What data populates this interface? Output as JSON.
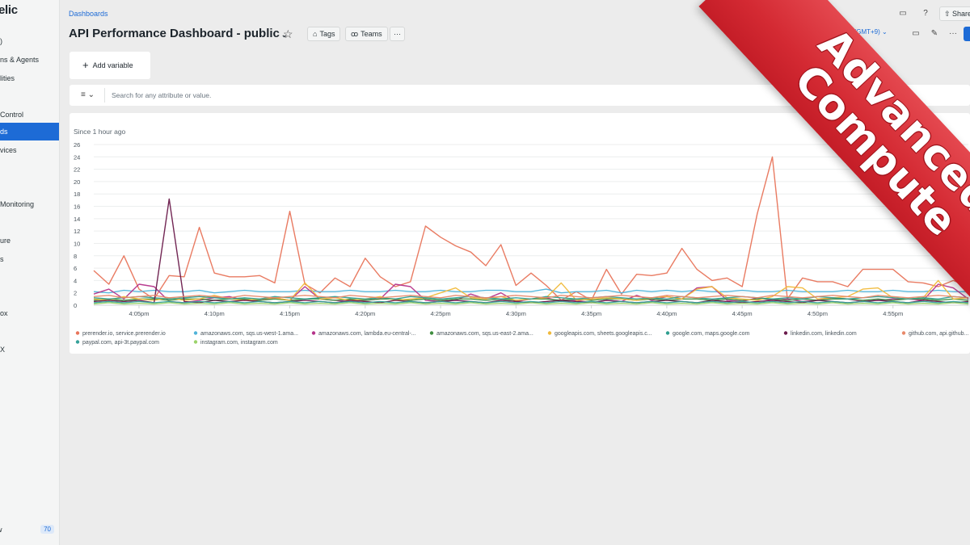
{
  "sidebar": {
    "logo": "elic",
    "items": [
      {
        "label": ")",
        "active": false
      },
      {
        "label": "ns & Agents",
        "active": false
      },
      {
        "label": "lities",
        "active": false
      },
      {
        "label": " Control",
        "active": false
      },
      {
        "label": "ds",
        "active": true
      },
      {
        "label": "vices",
        "active": false
      },
      {
        "label": " Monitoring",
        "active": false
      },
      {
        "label": "ure",
        "active": false
      },
      {
        "label": "s",
        "active": false
      },
      {
        "label": "ox",
        "active": false
      },
      {
        "label": "X",
        "active": false
      }
    ],
    "bottom_label": "w",
    "bottom_badge": "70"
  },
  "header": {
    "breadcrumb": "Dashboards",
    "title": "API Performance Dashboard - public",
    "tags_label": "Tags",
    "teams_label": "Teams",
    "more_label": "···",
    "share_label": "Share",
    "timezone": "Default (GMT+9)"
  },
  "variables": {
    "add_label": "Add variable"
  },
  "search": {
    "placeholder": "Search for any attribute or value."
  },
  "panel": {
    "subtitle": "Since 1 hour ago"
  },
  "ribbon": {
    "text": "Advanced\nCompute"
  },
  "chart_data": {
    "type": "line",
    "title": "",
    "subtitle": "Since 1 hour ago",
    "xlabel": "",
    "ylabel": "",
    "ylim": [
      0,
      26
    ],
    "yticks": [
      0,
      2,
      4,
      6,
      8,
      10,
      12,
      14,
      16,
      18,
      20,
      22,
      24,
      26
    ],
    "xticks": [
      "4:05pm",
      "4:10pm",
      "4:15pm",
      "4:20pm",
      "4:25pm",
      "4:30pm",
      "4:35pm",
      "4:40pm",
      "4:45pm",
      "4:50pm",
      "4:55pm"
    ],
    "x_start_minute": 2,
    "x_step_minutes": 1,
    "series": [
      {
        "name": "prerender.io, service.prerender.io",
        "color": "#e8745a",
        "values": [
          5.6,
          3.4,
          8.0,
          2.6,
          1.0,
          4.8,
          4.6,
          12.6,
          5.2,
          4.6,
          4.6,
          4.8,
          3.6,
          15.2,
          3.4,
          2.0,
          4.4,
          3.0,
          7.6,
          4.6,
          3.0,
          3.8,
          12.8,
          11.0,
          9.6,
          8.6,
          6.4,
          9.8,
          3.2,
          5.2,
          3.2,
          0.8,
          2.2,
          0.8,
          5.8,
          1.8,
          5.0,
          4.8,
          5.2,
          9.2,
          5.8,
          4.0,
          4.4,
          3.0,
          14.8,
          24.0,
          1.0,
          4.4,
          3.8,
          3.8,
          3.0,
          5.8,
          5.8,
          5.8,
          3.8,
          3.6,
          3.0,
          4.0,
          3.0
        ]
      },
      {
        "name": "amazonaws.com, sqs.us-west-1.ama...",
        "color": "#4fb3d9",
        "values": [
          2.2,
          2.0,
          2.4,
          2.2,
          2.4,
          2.2,
          2.2,
          2.4,
          2.0,
          2.2,
          2.4,
          2.2,
          2.2,
          2.2,
          2.4,
          2.2,
          2.2,
          2.4,
          2.2,
          2.2,
          2.4,
          2.2,
          2.2,
          2.4,
          2.2,
          2.2,
          2.4,
          2.4,
          2.2,
          2.2,
          2.6,
          2.0,
          2.2,
          2.2,
          2.4,
          2.0,
          2.4,
          2.2,
          2.4,
          2.2,
          2.4,
          2.2,
          2.2,
          2.4,
          2.2,
          2.2,
          2.4,
          2.2,
          2.2,
          2.2,
          2.4,
          2.2,
          2.2,
          2.4,
          2.2,
          2.2,
          2.4,
          2.2,
          2.2
        ]
      },
      {
        "name": "amazonaws.com, lambda.eu-central-...",
        "color": "#b5338a",
        "values": [
          1.8,
          2.6,
          1.0,
          3.4,
          3.0,
          0.6,
          0.4,
          0.8,
          1.2,
          1.4,
          0.8,
          0.8,
          1.2,
          0.8,
          3.0,
          1.0,
          0.8,
          0.6,
          0.8,
          1.0,
          3.4,
          3.0,
          0.8,
          0.6,
          0.8,
          1.8,
          1.0,
          2.0,
          0.6,
          1.0,
          1.2,
          0.6,
          0.8,
          0.4,
          0.8,
          0.6,
          1.6,
          0.8,
          1.4,
          1.0,
          2.8,
          3.0,
          0.8,
          0.6,
          1.2,
          0.8,
          1.0,
          0.6,
          0.8,
          1.2,
          1.0,
          0.6,
          0.8,
          1.0,
          1.0,
          0.8,
          3.4,
          2.8,
          1.0
        ]
      },
      {
        "name": "amazonaws.com, sqs.us-east-2.ama...",
        "color": "#3f8d3f",
        "values": [
          0.8,
          1.0,
          0.8,
          1.0,
          1.0,
          0.8,
          1.0,
          1.0,
          0.8,
          1.0,
          1.0,
          0.8,
          1.0,
          0.8,
          1.0,
          1.0,
          0.8,
          1.0,
          0.8,
          1.0,
          1.0,
          0.8,
          1.0,
          0.8,
          1.0,
          1.0,
          0.8,
          1.0,
          0.8,
          1.0,
          1.0,
          0.8,
          1.0,
          0.8,
          1.0,
          1.0,
          0.8,
          1.0,
          0.8,
          1.0,
          1.0,
          0.8,
          1.0,
          0.8,
          1.0,
          1.0,
          0.8,
          1.0,
          0.8,
          1.0,
          1.0,
          0.8,
          1.0,
          0.8,
          1.0,
          1.0,
          0.8,
          1.0,
          0.8
        ]
      },
      {
        "name": "googleapis.com, sheets.googleapis.c...",
        "color": "#f0b93a",
        "values": [
          1.0,
          0.8,
          1.4,
          1.0,
          0.8,
          1.2,
          0.8,
          1.0,
          1.6,
          1.0,
          0.8,
          1.0,
          1.2,
          0.8,
          3.6,
          1.0,
          1.2,
          0.8,
          1.0,
          1.4,
          0.8,
          1.0,
          1.2,
          2.0,
          2.8,
          1.2,
          1.0,
          1.4,
          0.8,
          1.0,
          1.2,
          3.6,
          0.8,
          1.0,
          1.2,
          1.0,
          0.8,
          1.2,
          1.4,
          1.0,
          2.6,
          3.0,
          1.2,
          1.0,
          0.8,
          1.4,
          3.0,
          2.8,
          1.0,
          1.2,
          1.4,
          2.6,
          2.8,
          1.2,
          1.0,
          1.2,
          4.0,
          1.0,
          1.2
        ]
      },
      {
        "name": "google.com, maps.google.com",
        "color": "#2e9e8f",
        "values": [
          1.2,
          1.0,
          1.2,
          1.4,
          1.2,
          1.0,
          1.2,
          1.4,
          1.2,
          1.0,
          1.2,
          1.0,
          1.4,
          1.2,
          1.0,
          1.2,
          1.4,
          1.2,
          1.0,
          1.2,
          1.0,
          1.4,
          1.2,
          1.0,
          1.2,
          1.4,
          1.2,
          1.0,
          1.2,
          1.0,
          1.4,
          1.2,
          1.0,
          1.2,
          1.4,
          1.2,
          1.0,
          1.2,
          1.0,
          1.4,
          1.2,
          1.0,
          1.2,
          1.4,
          1.2,
          1.0,
          1.2,
          1.0,
          1.4,
          1.2,
          1.0,
          1.2,
          1.4,
          1.2,
          1.0,
          1.2,
          1.0,
          1.4,
          1.2
        ]
      },
      {
        "name": "linkedin.com, linkedin.com",
        "color": "#6a1a4b",
        "values": [
          0.6,
          0.8,
          0.6,
          0.8,
          0.4,
          17.2,
          0.6,
          0.4,
          0.8,
          0.6,
          0.8,
          0.6,
          0.4,
          0.6,
          0.8,
          0.6,
          0.4,
          0.8,
          0.6,
          0.4,
          0.8,
          0.6,
          0.4,
          0.6,
          0.8,
          0.6,
          0.4,
          0.8,
          0.6,
          0.4,
          0.6,
          0.8,
          0.6,
          0.4,
          0.8,
          0.6,
          0.4,
          0.6,
          0.8,
          0.6,
          0.4,
          0.8,
          0.6,
          0.4,
          0.6,
          0.8,
          0.6,
          0.4,
          0.8,
          0.6,
          0.4,
          0.6,
          0.8,
          0.6,
          0.4,
          0.8,
          0.6,
          0.4,
          0.6
        ]
      },
      {
        "name": "github.com, api.github...",
        "color": "#e8896a",
        "values": [
          1.4,
          1.6,
          1.2,
          1.4,
          1.6,
          1.2,
          1.4,
          1.6,
          1.4,
          1.2,
          1.6,
          1.4,
          1.2,
          1.4,
          1.6,
          1.4,
          1.2,
          1.6,
          1.4,
          1.2,
          1.4,
          1.6,
          1.4,
          1.2,
          1.6,
          1.4,
          1.2,
          1.4,
          1.6,
          1.4,
          1.2,
          1.6,
          1.4,
          1.2,
          1.4,
          1.6,
          1.4,
          1.2,
          1.6,
          1.4,
          1.2,
          1.4,
          1.6,
          1.4,
          1.2,
          1.6,
          1.4,
          1.2,
          1.4,
          1.6,
          1.4,
          1.2,
          1.6,
          1.4,
          1.2,
          1.4,
          1.6,
          1.4,
          1.2
        ]
      },
      {
        "name": "paypal.com, api-3t.paypal.com",
        "color": "#35a19a",
        "values": [
          0.4,
          0.6,
          0.4,
          0.6,
          0.4,
          0.6,
          0.4,
          0.6,
          0.4,
          0.6,
          0.4,
          0.6,
          0.4,
          0.6,
          0.4,
          0.6,
          0.4,
          0.6,
          0.4,
          0.6,
          0.4,
          0.6,
          0.4,
          0.6,
          0.4,
          0.6,
          0.4,
          0.6,
          0.4,
          0.6,
          0.4,
          0.6,
          0.4,
          0.6,
          0.4,
          0.6,
          0.4,
          0.6,
          0.4,
          0.6,
          0.4,
          0.6,
          0.4,
          0.6,
          0.4,
          0.6,
          0.4,
          0.6,
          0.4,
          0.6,
          0.4,
          0.6,
          0.4,
          0.6,
          0.4,
          0.6,
          0.4,
          0.6,
          0.4
        ]
      },
      {
        "name": "instagram.com, instagram.com",
        "color": "#9bd36a",
        "values": [
          0.2,
          0.4,
          0.2,
          0.3,
          0.2,
          0.4,
          0.2,
          0.3,
          0.2,
          0.4,
          0.2,
          0.3,
          0.2,
          0.4,
          0.2,
          0.3,
          0.2,
          0.4,
          0.2,
          0.3,
          0.2,
          0.4,
          0.2,
          0.3,
          0.2,
          0.4,
          0.2,
          0.3,
          0.2,
          0.4,
          0.2,
          0.3,
          0.2,
          0.4,
          0.2,
          0.3,
          0.2,
          0.4,
          0.2,
          0.3,
          0.2,
          0.4,
          0.2,
          0.3,
          0.2,
          0.4,
          0.2,
          0.3,
          0.2,
          0.4,
          0.2,
          0.3,
          0.2,
          0.4,
          0.2,
          0.3,
          0.2,
          0.4,
          0.2
        ]
      }
    ]
  }
}
